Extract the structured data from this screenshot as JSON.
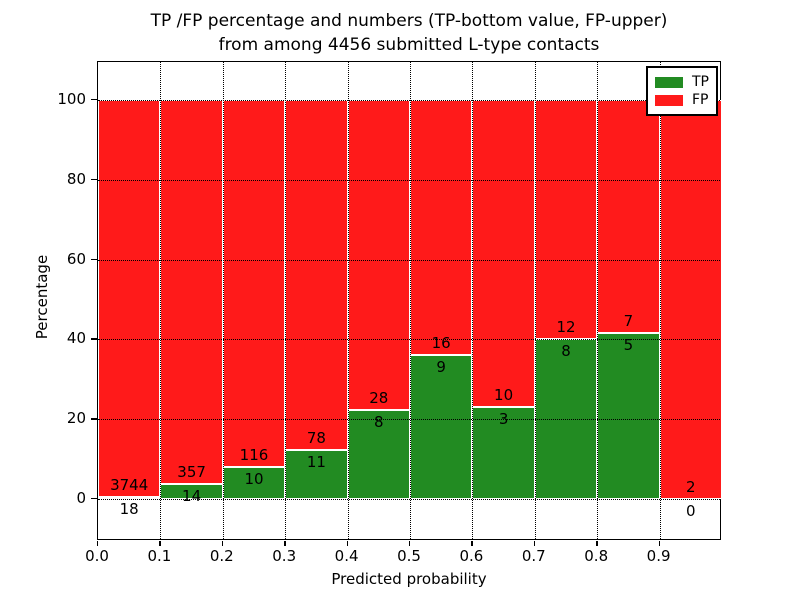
{
  "chart_data": {
    "type": "bar",
    "stacked": true,
    "orientation": "vertical",
    "title_line1": "TP /FP percentage and numbers (TP-bottom value, FP-upper)",
    "title_line2": "from among 4456 submitted L-type contacts",
    "total_contacts": 4456,
    "xlabel": "Predicted probability",
    "ylabel": "Percentage",
    "xlim": [
      0.0,
      1.0
    ],
    "ylim": [
      -10.5,
      109.8
    ],
    "grid": "dotted",
    "bin_width": 0.1,
    "categories": [
      "0.0-0.1",
      "0.1-0.2",
      "0.2-0.3",
      "0.3-0.4",
      "0.4-0.5",
      "0.5-0.6",
      "0.6-0.7",
      "0.7-0.8",
      "0.8-0.9",
      "0.9-1.0"
    ],
    "series": [
      {
        "name": "TP",
        "color": "#228b22",
        "counts": [
          18,
          14,
          10,
          11,
          8,
          9,
          3,
          8,
          5,
          0
        ]
      },
      {
        "name": "FP",
        "color": "#ff1a1a",
        "counts": [
          3744,
          357,
          116,
          78,
          28,
          16,
          10,
          12,
          7,
          2
        ]
      }
    ],
    "tp_percent_of_bin": [
      0.48,
      3.77,
      7.94,
      12.36,
      22.22,
      36.0,
      23.08,
      40.0,
      41.67,
      0.0
    ],
    "x_ticks": [
      {
        "label": "0.0",
        "value": 0.0
      },
      {
        "label": "0.1",
        "value": 0.1
      },
      {
        "label": "0.2",
        "value": 0.2
      },
      {
        "label": "0.3",
        "value": 0.3
      },
      {
        "label": "0.4",
        "value": 0.4
      },
      {
        "label": "0.5",
        "value": 0.5
      },
      {
        "label": "0.6",
        "value": 0.6
      },
      {
        "label": "0.7",
        "value": 0.7
      },
      {
        "label": "0.8",
        "value": 0.8
      },
      {
        "label": "0.9",
        "value": 0.9
      }
    ],
    "y_ticks": [
      {
        "label": "0",
        "value": 0
      },
      {
        "label": "20",
        "value": 20
      },
      {
        "label": "40",
        "value": 40
      },
      {
        "label": "60",
        "value": 60
      },
      {
        "label": "80",
        "value": 80
      },
      {
        "label": "100",
        "value": 100
      }
    ],
    "legend": {
      "position": "upper right",
      "items": [
        {
          "label": "TP",
          "color": "#228b22"
        },
        {
          "label": "FP",
          "color": "#ff1a1a"
        }
      ]
    }
  }
}
